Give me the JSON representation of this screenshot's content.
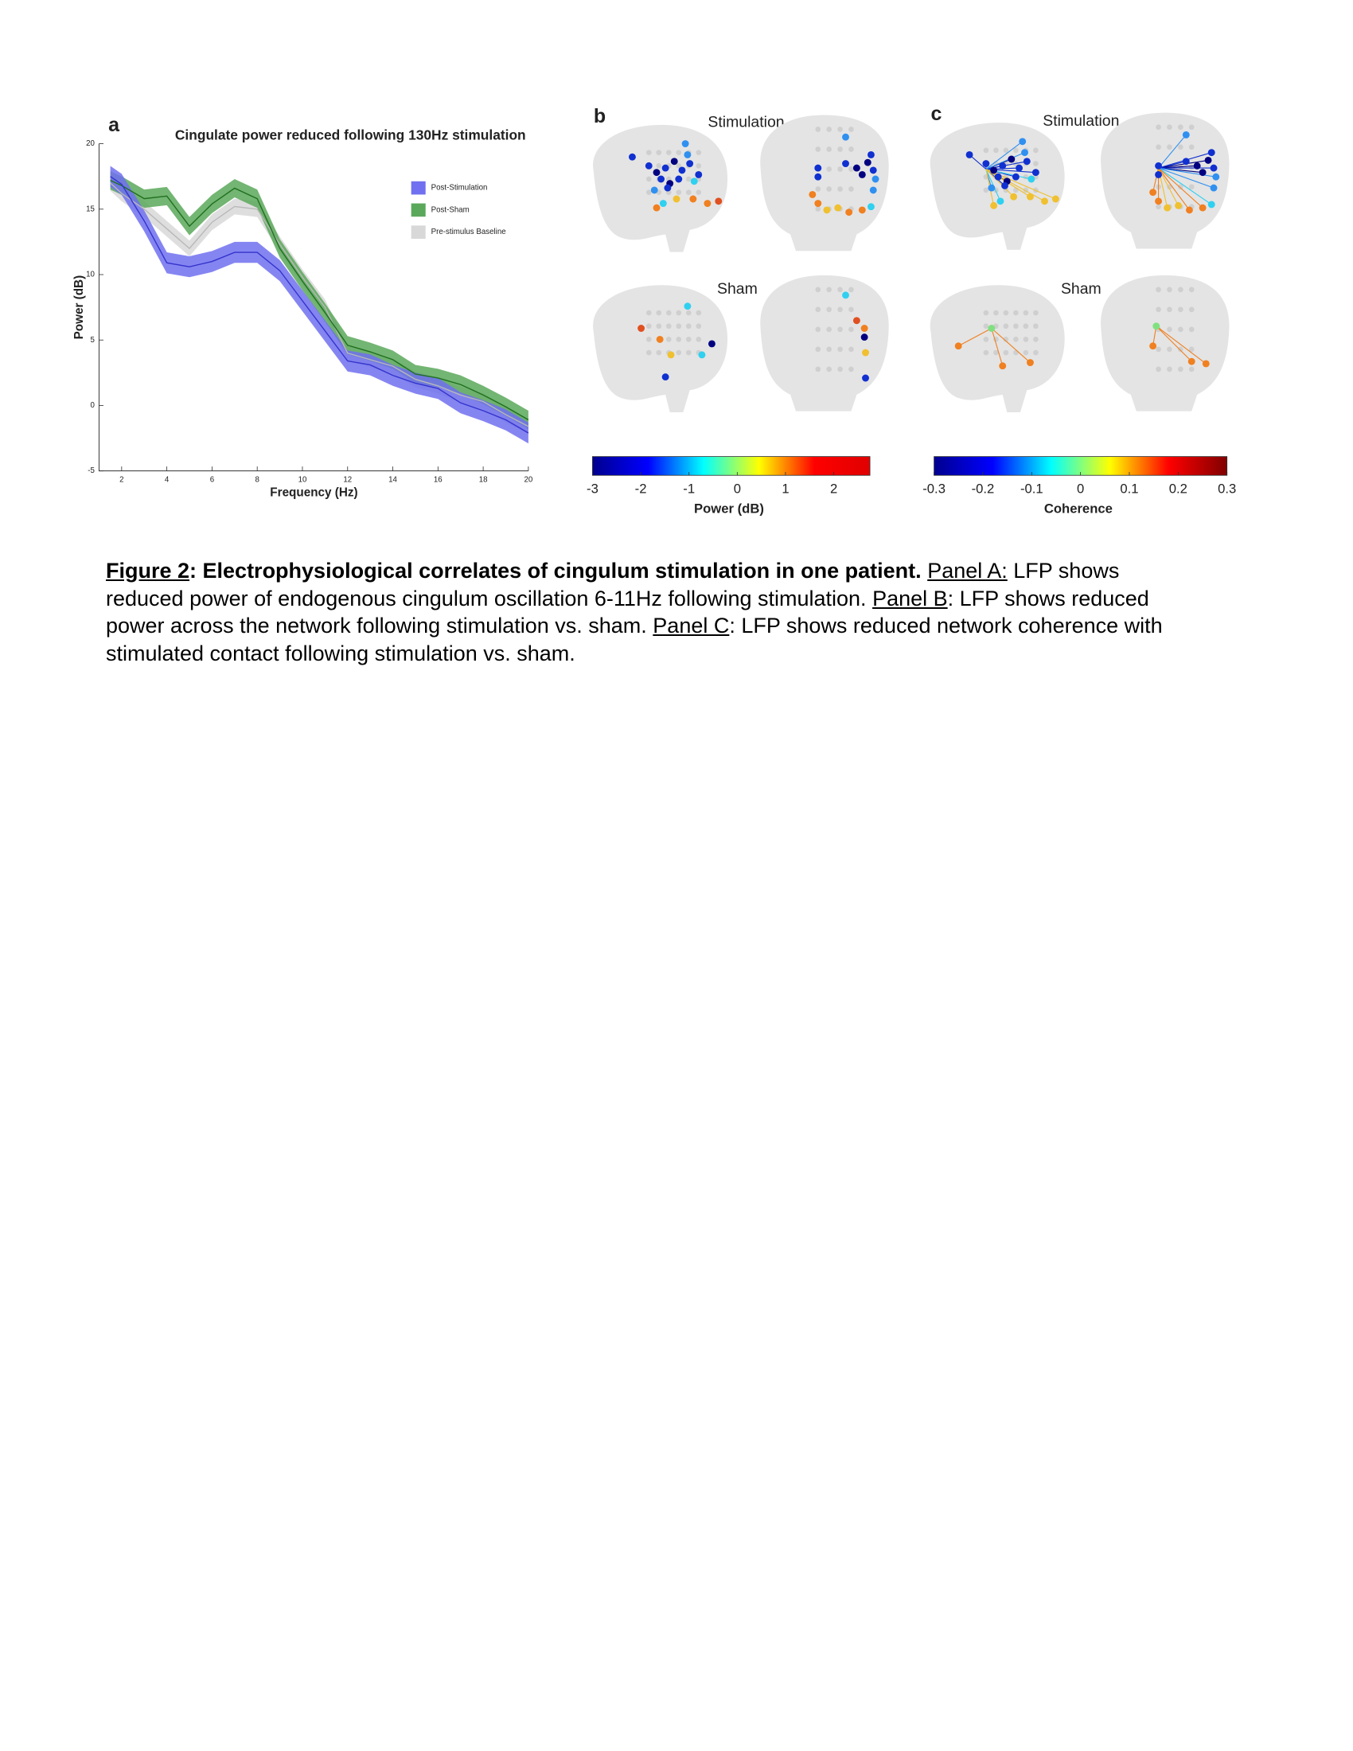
{
  "chart_data": [
    {
      "type": "line",
      "panel": "a",
      "title": "Cingulate power reduced following 130Hz stimulation",
      "xlabel": "Frequency (Hz)",
      "ylabel": "Power (dB)",
      "x": [
        1.5,
        2,
        3,
        4,
        5,
        6,
        7,
        8,
        9,
        10,
        11,
        12,
        13,
        14,
        15,
        16,
        17,
        18,
        19,
        20
      ],
      "series": [
        {
          "name": "Post-Stimulation",
          "color": "#3333cc",
          "band_color": "#7070f0",
          "error": 0.8,
          "values": [
            17.5,
            16.9,
            14.1,
            10.9,
            10.6,
            11,
            11.7,
            11.7,
            10.3,
            8,
            5.7,
            3.4,
            3.1,
            2.3,
            1.7,
            1.3,
            0.2,
            -0.4,
            -1.1,
            -2.1
          ]
        },
        {
          "name": "Post-Sham",
          "color": "#1f6f1f",
          "band_color": "#5aa85a",
          "error": 0.7,
          "values": [
            17.2,
            16.8,
            15.8,
            16,
            13.7,
            15.4,
            16.6,
            15.8,
            12,
            9.5,
            7.1,
            4.6,
            4.1,
            3.5,
            2.4,
            2.1,
            1.6,
            0.8,
            -0.1,
            -1.1
          ]
        },
        {
          "name": "Pre-stimulus Baseline",
          "color": "#b8b8b8",
          "band_color": "#d8d8d8",
          "error": 0.6,
          "values": [
            17,
            16.2,
            15,
            13.5,
            12,
            14,
            15.2,
            15,
            12.3,
            9.8,
            7.5,
            4,
            3.5,
            3,
            2,
            1.5,
            0.8,
            0.3,
            -0.7,
            -1.6
          ]
        }
      ],
      "xlim": [
        1,
        20
      ],
      "xticks": [
        2,
        4,
        6,
        8,
        10,
        12,
        14,
        16,
        18,
        20
      ],
      "ylim": [
        -5,
        20
      ],
      "yticks": [
        -5,
        0,
        5,
        10,
        15,
        20
      ],
      "legend": "upper right"
    },
    {
      "type": "colorbar",
      "panel": "b",
      "xlabel": "Power (dB)",
      "xlim": [
        -3,
        2.75
      ],
      "xticks": [
        -3,
        -2,
        -1,
        0,
        1,
        2
      ],
      "colors": [
        "#00008f",
        "#0000ff",
        "#00ffff",
        "#ffff00",
        "#ff0000",
        "#e00000"
      ]
    },
    {
      "type": "colorbar",
      "panel": "c",
      "xlabel": "Coherence",
      "xlim": [
        -0.3,
        0.3
      ],
      "xticks": [
        -0.3,
        -0.2,
        -0.1,
        0,
        0.1,
        0.2,
        0.3
      ],
      "colors": [
        "#00008f",
        "#0000ff",
        "#00ffff",
        "#ffff00",
        "#ff0000",
        "#800000"
      ]
    }
  ],
  "panels": {
    "b": {
      "label": "b",
      "top": "Stimulation",
      "bottom": "Sham"
    },
    "c": {
      "label": "c",
      "top": "Stimulation",
      "bottom": "Sham"
    }
  },
  "caption": {
    "figure": "Figure 2",
    "title": ": Electrophysiological correlates of cingulum stimulation in one patient.",
    "a_label": "Panel A:",
    "a_text": " LFP shows reduced power of endogenous cingulum oscillation 6-11Hz following stimulation. ",
    "b_label": "Panel B",
    "b_text": ": LFP shows reduced power across the network following stimulation vs. sham. ",
    "c_label": "Panel C",
    "c_text": ": LFP shows reduced network coherence with stimulated contact following stimulation vs. sham."
  }
}
